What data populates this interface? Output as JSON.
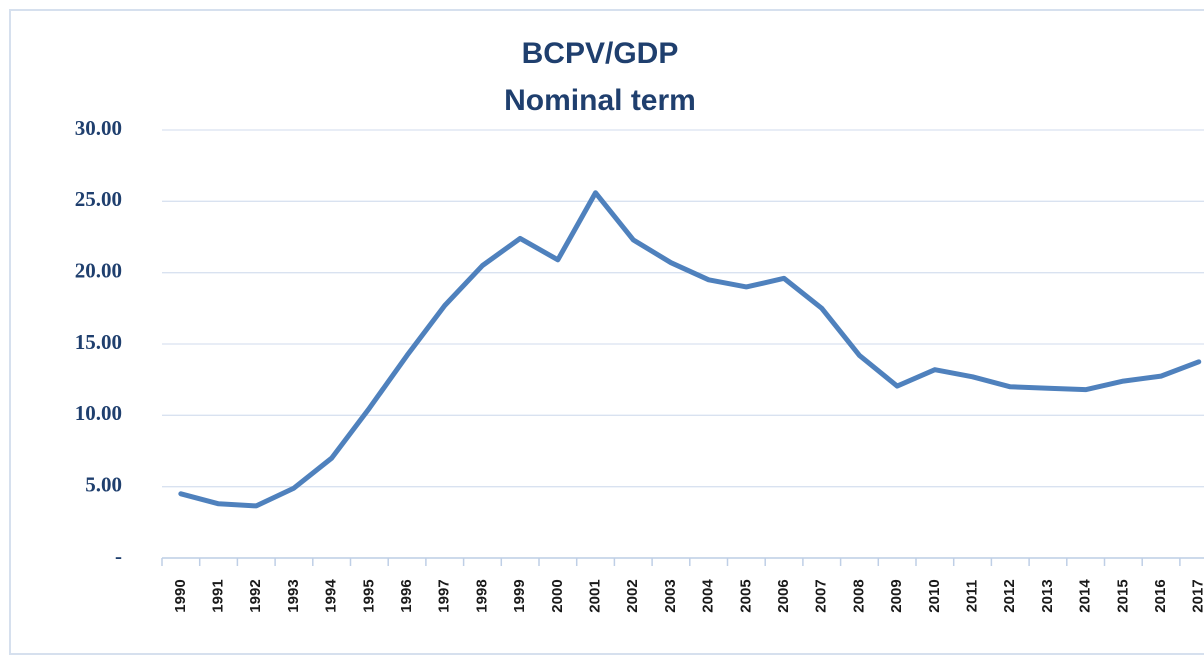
{
  "chart_data": {
    "type": "line",
    "title": "BCPV/GDP",
    "subtitle": "Nominal term",
    "categories": [
      "1990",
      "1991",
      "1992",
      "1993",
      "1994",
      "1995",
      "1996",
      "1997",
      "1998",
      "1999",
      "2000",
      "2001",
      "2002",
      "2003",
      "2004",
      "2005",
      "2006",
      "2007",
      "2008",
      "2009",
      "2010",
      "2011",
      "2012",
      "2013",
      "2014",
      "2015",
      "2016",
      "2017"
    ],
    "series": [
      {
        "color": "#4f81bd",
        "values": [
          4.5,
          3.8,
          3.65,
          4.9,
          7.0,
          10.5,
          14.2,
          17.7,
          20.5,
          22.4,
          20.9,
          25.6,
          22.3,
          20.7,
          19.5,
          19.0,
          19.6,
          17.5,
          14.2,
          12.05,
          13.2,
          12.7,
          12.0,
          11.9,
          11.8,
          12.4,
          12.75,
          13.75
        ]
      }
    ],
    "ylim": [
      0,
      30
    ],
    "yticks": [
      {
        "value": 0,
        "label": "-"
      },
      {
        "value": 5,
        "label": "5.00"
      },
      {
        "value": 10,
        "label": "10.00"
      },
      {
        "value": 15,
        "label": "15.00"
      },
      {
        "value": 20,
        "label": "20.00"
      },
      {
        "value": 25,
        "label": "25.00"
      },
      {
        "value": 30,
        "label": "30.00"
      }
    ],
    "grid": true
  }
}
